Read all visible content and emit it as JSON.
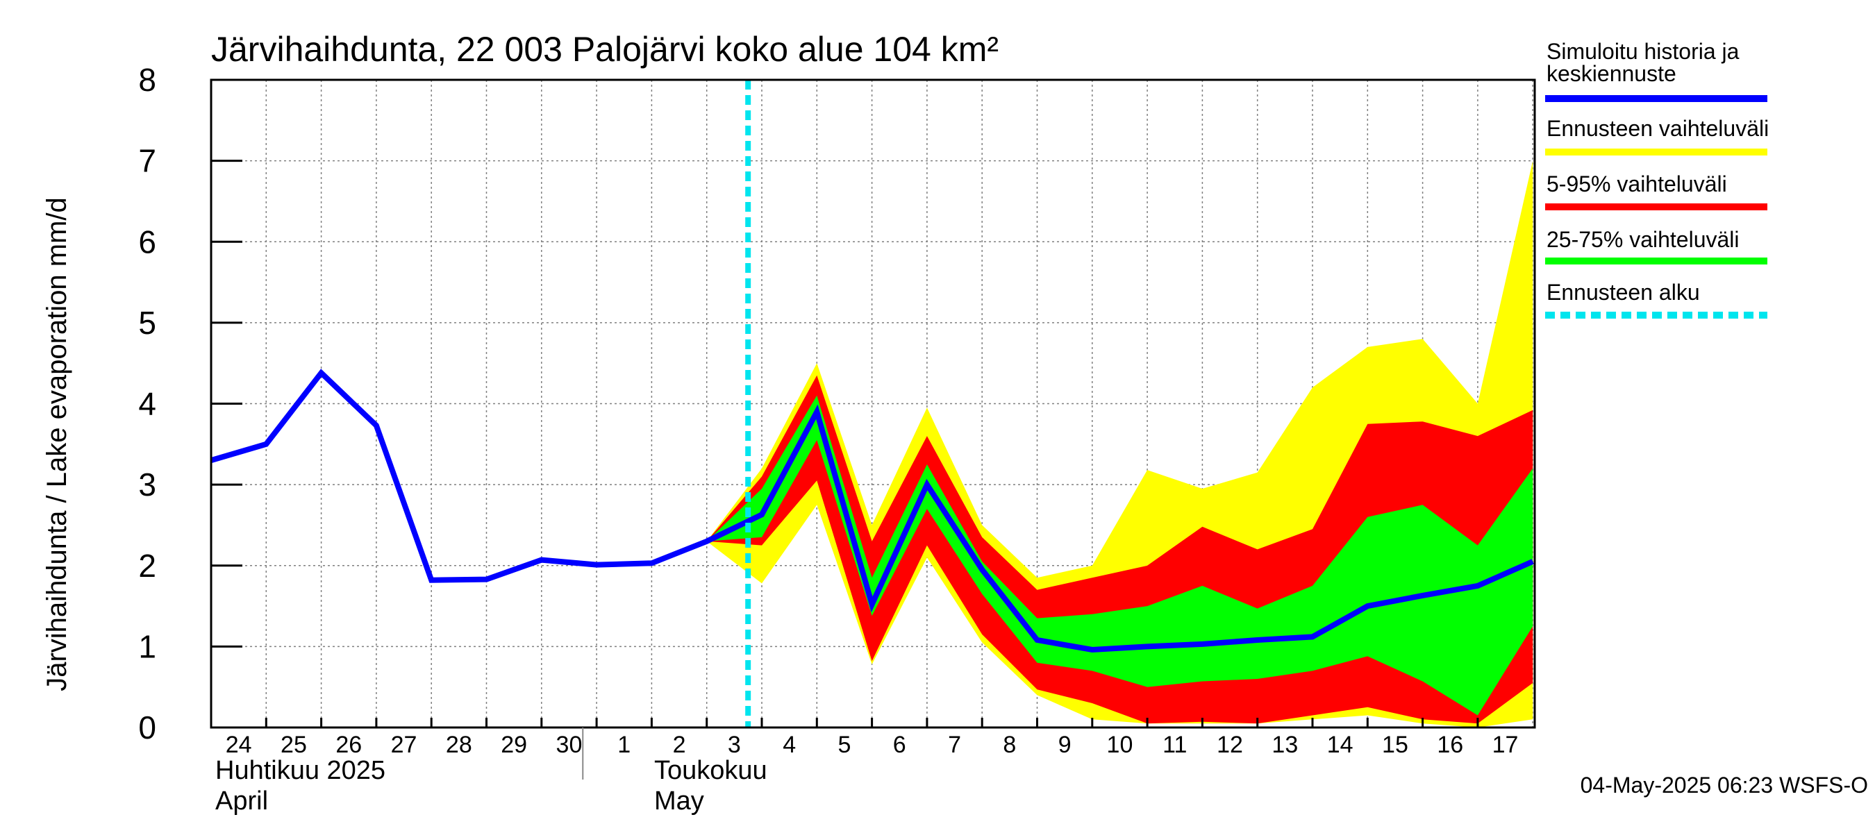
{
  "chart_data": {
    "type": "area",
    "title": "Järvihaihdunta, 22 003 Palojärvi koko alue 104 km²",
    "ylabel": "Järvihaihdunta / Lake evaporation   mm/d",
    "ylim": [
      0,
      8
    ],
    "yticks": [
      "0",
      "1",
      "2",
      "3",
      "4",
      "5",
      "6",
      "7",
      "8"
    ],
    "grid": true,
    "legend_position": "right",
    "x_dates": [
      "2025-04-24",
      "2025-04-25",
      "2025-04-26",
      "2025-04-27",
      "2025-04-28",
      "2025-04-29",
      "2025-04-30",
      "2025-05-01",
      "2025-05-02",
      "2025-05-03",
      "2025-05-04",
      "2025-05-05",
      "2025-05-06",
      "2025-05-07",
      "2025-05-08",
      "2025-05-09",
      "2025-05-10",
      "2025-05-11",
      "2025-05-12",
      "2025-05-13",
      "2025-05-14",
      "2025-05-15",
      "2025-05-16",
      "2025-05-17",
      "2025-05-18"
    ],
    "xtick_labels": [
      "24",
      "25",
      "26",
      "27",
      "28",
      "29",
      "30",
      "1",
      "2",
      "3",
      "4",
      "5",
      "6",
      "7",
      "8",
      "9",
      "10",
      "11",
      "12",
      "13",
      "14",
      "15",
      "16",
      "17"
    ],
    "month_labels": [
      {
        "line1": "Huhtikuu  2025",
        "line2": "April"
      },
      {
        "line1": "Toukokuu",
        "line2": "May"
      }
    ],
    "forecast_start": "2025-05-04",
    "series": [
      {
        "name": "Simuloitu historia ja keskiennuste",
        "color": "#0000ff",
        "values": [
          3.3,
          3.5,
          4.38,
          3.73,
          1.82,
          1.83,
          2.07,
          2.01,
          2.03,
          2.3,
          2.63,
          3.9,
          1.52,
          3.0,
          1.95,
          1.08,
          0.96,
          1.0,
          1.03,
          1.08,
          1.12,
          1.5,
          1.63,
          1.75,
          2.05
        ]
      },
      {
        "name": "Ennusteen vaihteluväli",
        "color": "#ffff00",
        "upper": [
          null,
          null,
          null,
          null,
          null,
          null,
          null,
          null,
          null,
          2.3,
          3.2,
          4.5,
          2.5,
          3.95,
          2.5,
          1.85,
          2.0,
          3.18,
          2.95,
          3.15,
          4.2,
          4.7,
          4.8,
          4.0,
          7.0
        ],
        "lower": [
          null,
          null,
          null,
          null,
          null,
          null,
          null,
          null,
          null,
          2.3,
          1.78,
          2.75,
          0.78,
          2.1,
          1.05,
          0.4,
          0.1,
          0.05,
          0.05,
          0.05,
          0.1,
          0.15,
          0.05,
          0.0,
          0.1
        ]
      },
      {
        "name": "5-95% vaihteluväli",
        "color": "#ff0000",
        "upper": [
          null,
          null,
          null,
          null,
          null,
          null,
          null,
          null,
          null,
          2.3,
          3.1,
          4.35,
          2.3,
          3.6,
          2.35,
          1.7,
          1.85,
          2.0,
          2.48,
          2.2,
          2.45,
          3.75,
          3.78,
          3.6,
          3.92
        ],
        "lower": [
          null,
          null,
          null,
          null,
          null,
          null,
          null,
          null,
          null,
          2.3,
          2.25,
          3.05,
          0.82,
          2.25,
          1.15,
          0.47,
          0.3,
          0.05,
          0.07,
          0.05,
          0.15,
          0.25,
          0.1,
          0.05,
          0.55
        ]
      },
      {
        "name": "25-75% vaihteluväli",
        "color": "#00ff00",
        "upper": [
          null,
          null,
          null,
          null,
          null,
          null,
          null,
          null,
          null,
          2.3,
          2.95,
          4.1,
          1.85,
          3.25,
          2.05,
          1.35,
          1.4,
          1.5,
          1.75,
          1.47,
          1.75,
          2.6,
          2.75,
          2.25,
          3.2
        ],
        "lower": [
          null,
          null,
          null,
          null,
          null,
          null,
          null,
          null,
          null,
          2.3,
          2.35,
          3.55,
          1.38,
          2.7,
          1.65,
          0.8,
          0.7,
          0.5,
          0.57,
          0.6,
          0.7,
          0.88,
          0.57,
          0.15,
          1.25
        ]
      }
    ],
    "legend": [
      {
        "label": "Simuloitu historia ja\nkeskiennuste",
        "color": "#0000ff",
        "style": "solid"
      },
      {
        "label": "Ennusteen vaihteluväli",
        "color": "#ffff00",
        "style": "solid"
      },
      {
        "label": "5-95% vaihteluväli",
        "color": "#ff0000",
        "style": "solid"
      },
      {
        "label": "25-75% vaihteluväli",
        "color": "#00ff00",
        "style": "solid"
      },
      {
        "label": "Ennusteen alku",
        "color": "#00e5ee",
        "style": "dashed"
      }
    ]
  },
  "footer": "04-May-2025 06:23 WSFS-O"
}
